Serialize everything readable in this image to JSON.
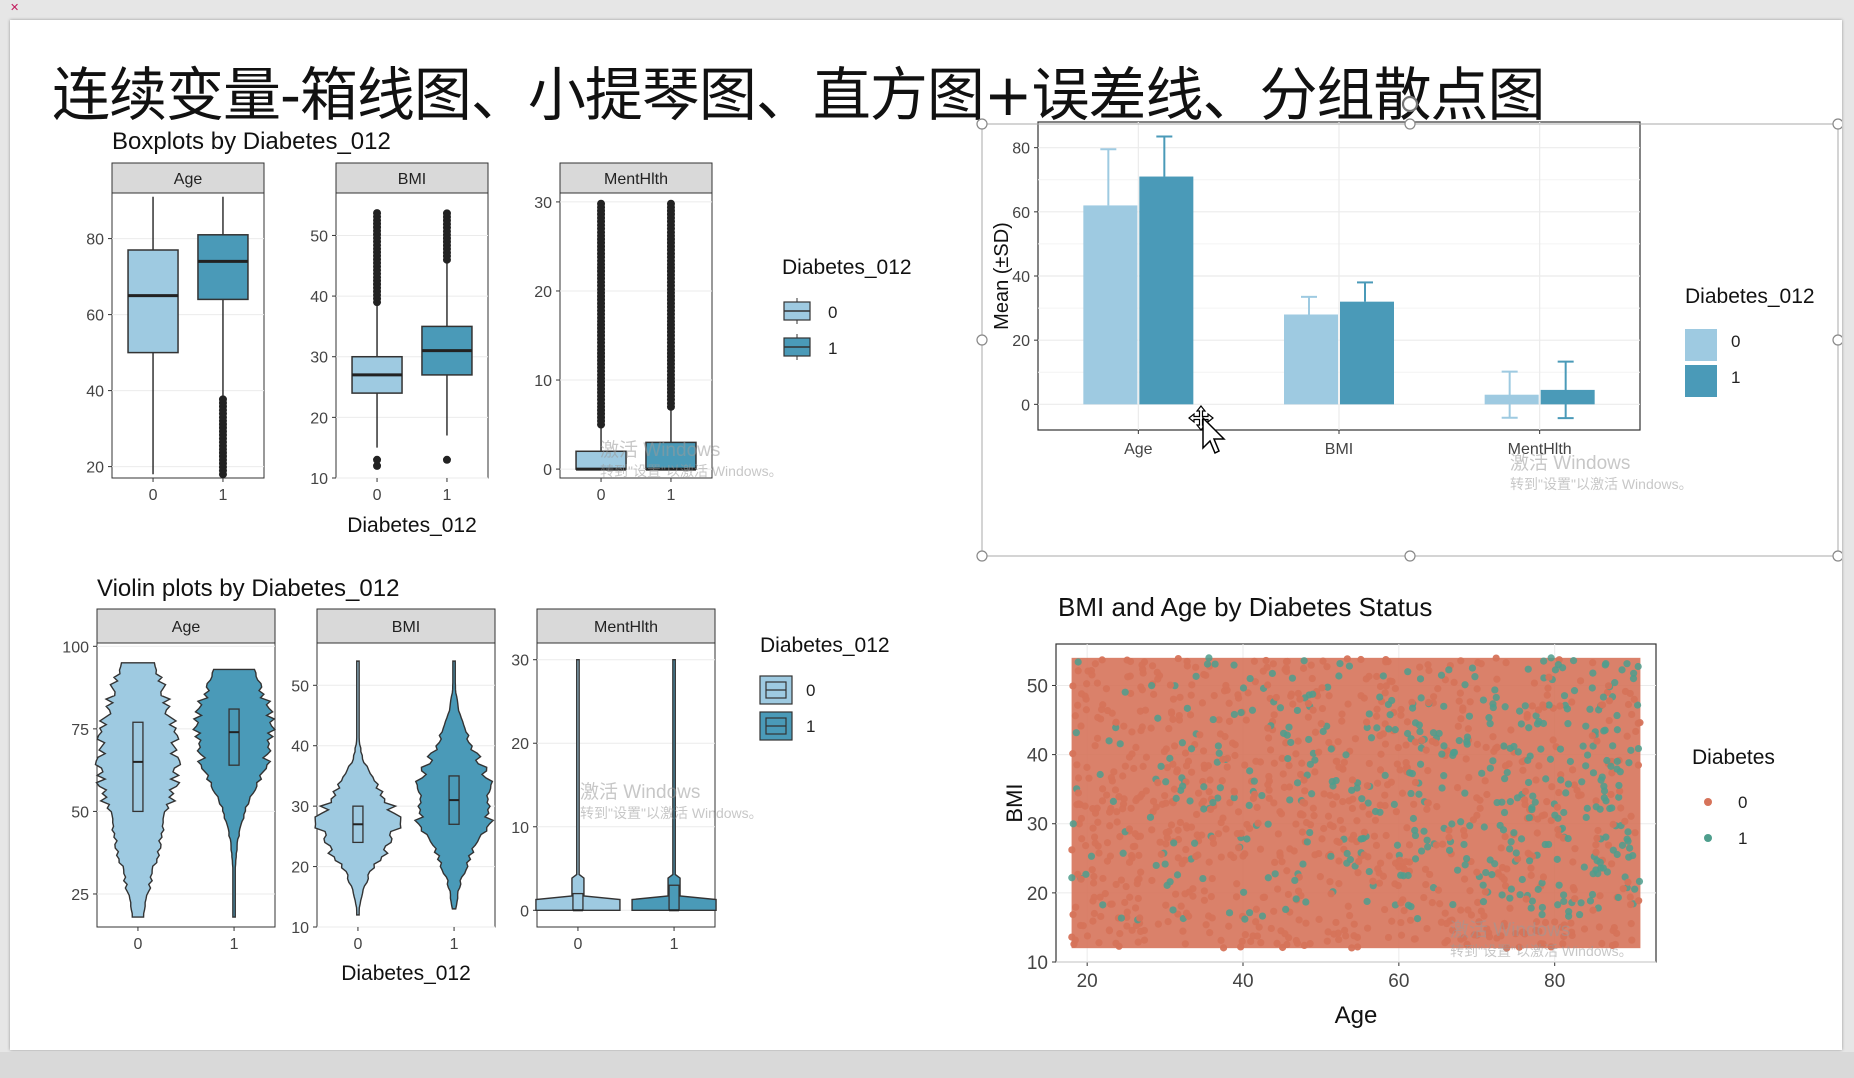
{
  "slide": {
    "title": "连续变量-箱线图、小提琴图、直方图+误差线、分组散点图"
  },
  "colors": {
    "group0": "#9ecae1",
    "group1": "#4a9ab8",
    "scatter0": "#d6735a",
    "scatter1": "#4e9e8d",
    "strip": "#d9d9d9",
    "grid": "#ebebeb",
    "selection_handle": "#888888"
  },
  "boxplots": {
    "title": "Boxplots by Diabetes_012",
    "xlabel": "Diabetes_012",
    "legend_title": "Diabetes_012",
    "legend_items": [
      "0",
      "1"
    ],
    "x_ticks": [
      "0",
      "1"
    ]
  },
  "violins": {
    "title": "Violin plots by Diabetes_012",
    "xlabel": "Diabetes_012",
    "legend_title": "Diabetes_012",
    "legend_items": [
      "0",
      "1"
    ],
    "x_ticks": [
      "0",
      "1"
    ]
  },
  "barchart": {
    "legend_title": "Diabetes_012",
    "legend_items": [
      "0",
      "1"
    ]
  },
  "scatter": {
    "legend_title": "Diabetes",
    "legend_items": [
      "0",
      "1"
    ]
  },
  "watermark": {
    "line1": "激活 Windows",
    "line2": "转到\"设置\"以激活 Windows。"
  },
  "chart_data": [
    {
      "chart": "boxplots",
      "type": "box",
      "title": "Boxplots by Diabetes_012",
      "xlabel": "Diabetes_012",
      "facets": [
        {
          "name": "Age",
          "yticks": [
            20,
            40,
            60,
            80
          ],
          "ylim": [
            17,
            92
          ],
          "boxes": [
            {
              "group": "0",
              "whisker_low": 18,
              "q1": 50,
              "median": 65,
              "q3": 77,
              "whisker_high": 91,
              "outliers": []
            },
            {
              "group": "1",
              "whisker_low": 38,
              "q1": 64,
              "median": 74,
              "q3": 81,
              "whisker_high": 91,
              "outlier_range": [
                18,
                38
              ]
            }
          ]
        },
        {
          "name": "BMI",
          "yticks": [
            10,
            20,
            30,
            40,
            50
          ],
          "ylim": [
            10,
            57
          ],
          "boxes": [
            {
              "group": "0",
              "whisker_low": 15,
              "q1": 24,
              "median": 27,
              "q3": 30,
              "whisker_high": 39,
              "outlier_range": [
                39,
                54
              ],
              "low_outliers": [
                12,
                13
              ]
            },
            {
              "group": "1",
              "whisker_low": 17,
              "q1": 27,
              "median": 31,
              "q3": 35,
              "whisker_high": 46,
              "outlier_range": [
                46,
                54
              ],
              "low_outliers": [
                13
              ]
            }
          ]
        },
        {
          "name": "MentHlth",
          "yticks": [
            0,
            10,
            20,
            30
          ],
          "ylim": [
            -1,
            31
          ],
          "boxes": [
            {
              "group": "0",
              "whisker_low": 0,
              "q1": 0,
              "median": 0,
              "q3": 2,
              "whisker_high": 5,
              "outlier_range": [
                5,
                30
              ]
            },
            {
              "group": "1",
              "whisker_low": 0,
              "q1": 0,
              "median": 0,
              "q3": 3,
              "whisker_high": 7,
              "outlier_range": [
                7,
                30
              ]
            }
          ]
        }
      ]
    },
    {
      "chart": "violins",
      "type": "violin",
      "title": "Violin plots by Diabetes_012",
      "xlabel": "Diabetes_012",
      "facets": [
        {
          "name": "Age",
          "yticks": [
            25,
            50,
            75,
            100
          ],
          "ylim": [
            15,
            101
          ],
          "groups": [
            {
              "group": "0",
              "min": 18,
              "q1": 50,
              "median": 65,
              "q3": 77,
              "max": 95
            },
            {
              "group": "1",
              "min": 18,
              "q1": 64,
              "median": 74,
              "q3": 81,
              "max": 93
            }
          ]
        },
        {
          "name": "BMI",
          "yticks": [
            10,
            20,
            30,
            40,
            50
          ],
          "ylim": [
            10,
            57
          ],
          "groups": [
            {
              "group": "0",
              "min": 12,
              "q1": 24,
              "median": 27,
              "q3": 30,
              "max": 54
            },
            {
              "group": "1",
              "min": 13,
              "q1": 27,
              "median": 31,
              "q3": 35,
              "max": 54
            }
          ]
        },
        {
          "name": "MentHlth",
          "yticks": [
            0,
            10,
            20,
            30
          ],
          "ylim": [
            -2,
            32
          ],
          "groups": [
            {
              "group": "0",
              "min": 0,
              "q1": 0,
              "median": 0,
              "q3": 2,
              "max": 30
            },
            {
              "group": "1",
              "min": 0,
              "q1": 0,
              "median": 0,
              "q3": 3,
              "max": 30
            }
          ]
        }
      ]
    },
    {
      "chart": "barchart",
      "type": "bar",
      "categories": [
        "Age",
        "BMI",
        "MentHlth"
      ],
      "ylabel": "Mean (±SD)",
      "yticks": [
        0,
        20,
        40,
        60,
        80
      ],
      "ylim": [
        -8,
        88
      ],
      "series": [
        {
          "name": "0",
          "values": [
            62,
            28,
            3
          ],
          "sd": [
            17.5,
            5.5,
            7.2
          ]
        },
        {
          "name": "1",
          "values": [
            71,
            32,
            4.5
          ],
          "sd": [
            12.5,
            6,
            8.8
          ]
        }
      ]
    },
    {
      "chart": "scatter",
      "type": "scatter",
      "title": "BMI and Age by Diabetes Status",
      "xlabel": "Age",
      "ylabel": "BMI",
      "xlim": [
        16,
        93
      ],
      "ylim": [
        10,
        56
      ],
      "xticks": [
        20,
        40,
        60,
        80
      ],
      "yticks": [
        10,
        20,
        30,
        40,
        50
      ],
      "x_range": [
        18,
        91
      ],
      "y_range": [
        12,
        54
      ]
    }
  ]
}
